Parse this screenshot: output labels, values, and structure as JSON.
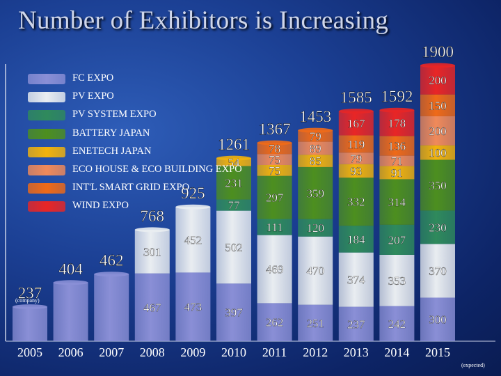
{
  "title": "Number of Exhibitors is Increasing",
  "unit_note": "(company)",
  "expected_note": "(expected)",
  "chart_data": {
    "type": "bar",
    "stacked": true,
    "categories": [
      "2005",
      "2006",
      "2007",
      "2008",
      "2009",
      "2010",
      "2011",
      "2012",
      "2013",
      "2014",
      "2015"
    ],
    "totals": [
      237,
      404,
      462,
      768,
      925,
      1261,
      1367,
      1453,
      1585,
      1592,
      1900
    ],
    "ylim": [
      0,
      1900
    ],
    "series": [
      {
        "name": "FC EXPO",
        "color": "#8a8fd6",
        "values": [
          237,
          404,
          462,
          467,
          473,
          397,
          262,
          251,
          237,
          242,
          300
        ]
      },
      {
        "name": "PV EXPO",
        "color": "#e9edf1",
        "values": [
          0,
          0,
          0,
          301,
          452,
          502,
          469,
          470,
          374,
          353,
          370
        ]
      },
      {
        "name": "PV SYSTEM EXPO",
        "color": "#2f8a5c",
        "values": [
          0,
          0,
          0,
          0,
          0,
          77,
          111,
          120,
          184,
          207,
          230
        ]
      },
      {
        "name": "BATTERY JAPAN",
        "color": "#4d8f1f",
        "values": [
          0,
          0,
          0,
          0,
          0,
          231,
          297,
          359,
          332,
          314,
          350
        ]
      },
      {
        "name": "ENETECH JAPAN",
        "color": "#f2b30c",
        "values": [
          0,
          0,
          0,
          0,
          0,
          54,
          75,
          85,
          93,
          91,
          100
        ]
      },
      {
        "name": "ECO HOUSE & ECO BUILDING EXPO",
        "color": "#f08a5a",
        "values": [
          0,
          0,
          0,
          0,
          0,
          0,
          75,
          89,
          79,
          71,
          200
        ]
      },
      {
        "name": "INT'L SMART GRID EXPO",
        "color": "#ef6a18",
        "values": [
          0,
          0,
          0,
          0,
          0,
          0,
          78,
          79,
          119,
          136,
          150
        ]
      },
      {
        "name": "WIND EXPO",
        "color": "#e82626",
        "values": [
          0,
          0,
          0,
          0,
          0,
          0,
          0,
          0,
          167,
          178,
          200
        ]
      }
    ],
    "segment_labels": [
      {
        "bar": 3,
        "series": 0,
        "text": "467"
      },
      {
        "bar": 3,
        "series": 1,
        "text": "301"
      },
      {
        "bar": 4,
        "series": 0,
        "text": "473"
      },
      {
        "bar": 4,
        "series": 1,
        "text": "452"
      },
      {
        "bar": 5,
        "series": 0,
        "text": "397"
      },
      {
        "bar": 5,
        "series": 1,
        "text": "502"
      },
      {
        "bar": 5,
        "series": 2,
        "text": "77"
      },
      {
        "bar": 5,
        "series": 3,
        "text": "231"
      },
      {
        "bar": 5,
        "series": 4,
        "text": "54"
      },
      {
        "bar": 6,
        "series": 0,
        "text": "262"
      },
      {
        "bar": 6,
        "series": 1,
        "text": "469"
      },
      {
        "bar": 6,
        "series": 2,
        "text": "111"
      },
      {
        "bar": 6,
        "series": 3,
        "text": "297"
      },
      {
        "bar": 6,
        "series": 4,
        "text": "75"
      },
      {
        "bar": 6,
        "series": 5,
        "text": "75"
      },
      {
        "bar": 6,
        "series": 6,
        "text": "78"
      },
      {
        "bar": 7,
        "series": 0,
        "text": "251"
      },
      {
        "bar": 7,
        "series": 1,
        "text": "470"
      },
      {
        "bar": 7,
        "series": 2,
        "text": "120"
      },
      {
        "bar": 7,
        "series": 3,
        "text": "359"
      },
      {
        "bar": 7,
        "series": 4,
        "text": "85"
      },
      {
        "bar": 7,
        "series": 5,
        "text": "89"
      },
      {
        "bar": 7,
        "series": 6,
        "text": "79"
      },
      {
        "bar": 8,
        "series": 0,
        "text": "237"
      },
      {
        "bar": 8,
        "series": 1,
        "text": "374"
      },
      {
        "bar": 8,
        "series": 2,
        "text": "184"
      },
      {
        "bar": 8,
        "series": 3,
        "text": "332"
      },
      {
        "bar": 8,
        "series": 4,
        "text": "93"
      },
      {
        "bar": 8,
        "series": 5,
        "text": "79"
      },
      {
        "bar": 8,
        "series": 6,
        "text": "119"
      },
      {
        "bar": 8,
        "series": 7,
        "text": "167"
      },
      {
        "bar": 9,
        "series": 0,
        "text": "242"
      },
      {
        "bar": 9,
        "series": 1,
        "text": "353"
      },
      {
        "bar": 9,
        "series": 2,
        "text": "207"
      },
      {
        "bar": 9,
        "series": 3,
        "text": "314"
      },
      {
        "bar": 9,
        "series": 4,
        "text": "91"
      },
      {
        "bar": 9,
        "series": 5,
        "text": "71"
      },
      {
        "bar": 9,
        "series": 6,
        "text": "136"
      },
      {
        "bar": 9,
        "series": 7,
        "text": "178"
      },
      {
        "bar": 10,
        "series": 0,
        "text": "300"
      },
      {
        "bar": 10,
        "series": 1,
        "text": "370"
      },
      {
        "bar": 10,
        "series": 2,
        "text": "230"
      },
      {
        "bar": 10,
        "series": 3,
        "text": "350"
      },
      {
        "bar": 10,
        "series": 4,
        "text": "100"
      },
      {
        "bar": 10,
        "series": 5,
        "text": "200"
      },
      {
        "bar": 10,
        "series": 6,
        "text": "150"
      },
      {
        "bar": 10,
        "series": 7,
        "text": "200"
      }
    ]
  }
}
